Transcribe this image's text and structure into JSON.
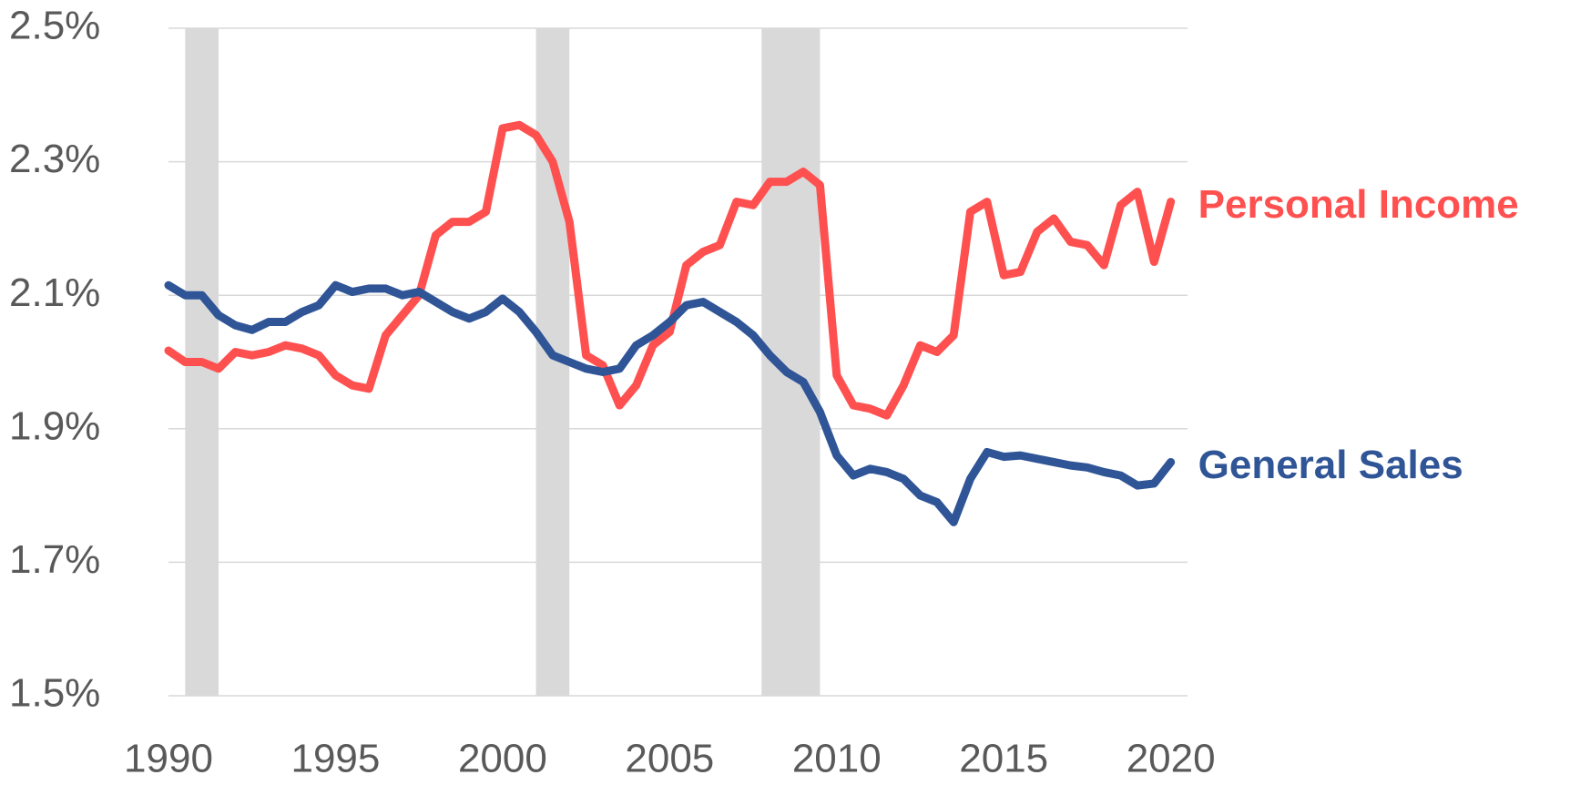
{
  "chart_data": {
    "type": "line",
    "x": [
      1990,
      1990.5,
      1991,
      1991.5,
      1992,
      1992.5,
      1993,
      1993.5,
      1994,
      1994.5,
      1995,
      1995.5,
      1996,
      1996.5,
      1997,
      1997.5,
      1998,
      1998.5,
      1999,
      1999.5,
      2000,
      2000.5,
      2001,
      2001.5,
      2002,
      2002.5,
      2003,
      2003.5,
      2004,
      2004.5,
      2005,
      2005.5,
      2006,
      2006.5,
      2007,
      2007.5,
      2008,
      2008.5,
      2009,
      2009.5,
      2010,
      2010.5,
      2011,
      2011.5,
      2012,
      2012.5,
      2013,
      2013.5,
      2014,
      2014.5,
      2015,
      2015.5,
      2016,
      2016.5,
      2017,
      2017.5,
      2018,
      2018.5,
      2019,
      2019.5,
      2020
    ],
    "series": [
      {
        "name": "Personal Income",
        "color": "#ff5050",
        "values": [
          2.017,
          2.0,
          2.0,
          1.99,
          2.015,
          2.01,
          2.015,
          2.025,
          2.02,
          2.01,
          1.98,
          1.965,
          1.96,
          2.04,
          2.07,
          2.1,
          2.19,
          2.21,
          2.21,
          2.225,
          2.35,
          2.355,
          2.34,
          2.3,
          2.21,
          2.01,
          1.995,
          1.935,
          1.965,
          2.025,
          2.045,
          2.145,
          2.165,
          2.175,
          2.24,
          2.235,
          2.27,
          2.27,
          2.285,
          2.265,
          1.98,
          1.935,
          1.93,
          1.92,
          1.965,
          2.025,
          2.015,
          2.04,
          2.225,
          2.24,
          2.13,
          2.135,
          2.195,
          2.215,
          2.18,
          2.175,
          2.145,
          2.235,
          2.255,
          2.15,
          2.24
        ]
      },
      {
        "name": "General Sales",
        "color": "#2f5597",
        "values": [
          2.115,
          2.1,
          2.1,
          2.07,
          2.055,
          2.048,
          2.06,
          2.06,
          2.075,
          2.085,
          2.115,
          2.105,
          2.11,
          2.11,
          2.1,
          2.105,
          2.09,
          2.075,
          2.065,
          2.075,
          2.095,
          2.075,
          2.045,
          2.01,
          2.0,
          1.99,
          1.985,
          1.99,
          2.025,
          2.04,
          2.06,
          2.085,
          2.09,
          2.075,
          2.06,
          2.04,
          2.01,
          1.985,
          1.97,
          1.925,
          1.86,
          1.83,
          1.84,
          1.835,
          1.825,
          1.8,
          1.79,
          1.76,
          1.825,
          1.865,
          1.858,
          1.86,
          1.855,
          1.85,
          1.845,
          1.842,
          1.835,
          1.83,
          1.815,
          1.818,
          1.85
        ]
      }
    ],
    "shaded_periods": [
      [
        1990.5,
        1991.5
      ],
      [
        2001,
        2002
      ],
      [
        2007.75,
        2009.5
      ]
    ],
    "shade_color": "#d9d9d9",
    "xlim": [
      1990,
      2020.5
    ],
    "xticks": [
      1990,
      1995,
      2000,
      2005,
      2010,
      2015,
      2020
    ],
    "ylim": [
      1.5,
      2.5
    ],
    "yticks": [
      {
        "value": 1.5,
        "label": "1.5%"
      },
      {
        "value": 1.7,
        "label": "1.7%"
      },
      {
        "value": 1.9,
        "label": "1.9%"
      },
      {
        "value": 2.1,
        "label": "2.1%"
      },
      {
        "value": 2.3,
        "label": "2.3%"
      },
      {
        "value": 2.5,
        "label": "2.5%"
      }
    ],
    "grid": true
  }
}
